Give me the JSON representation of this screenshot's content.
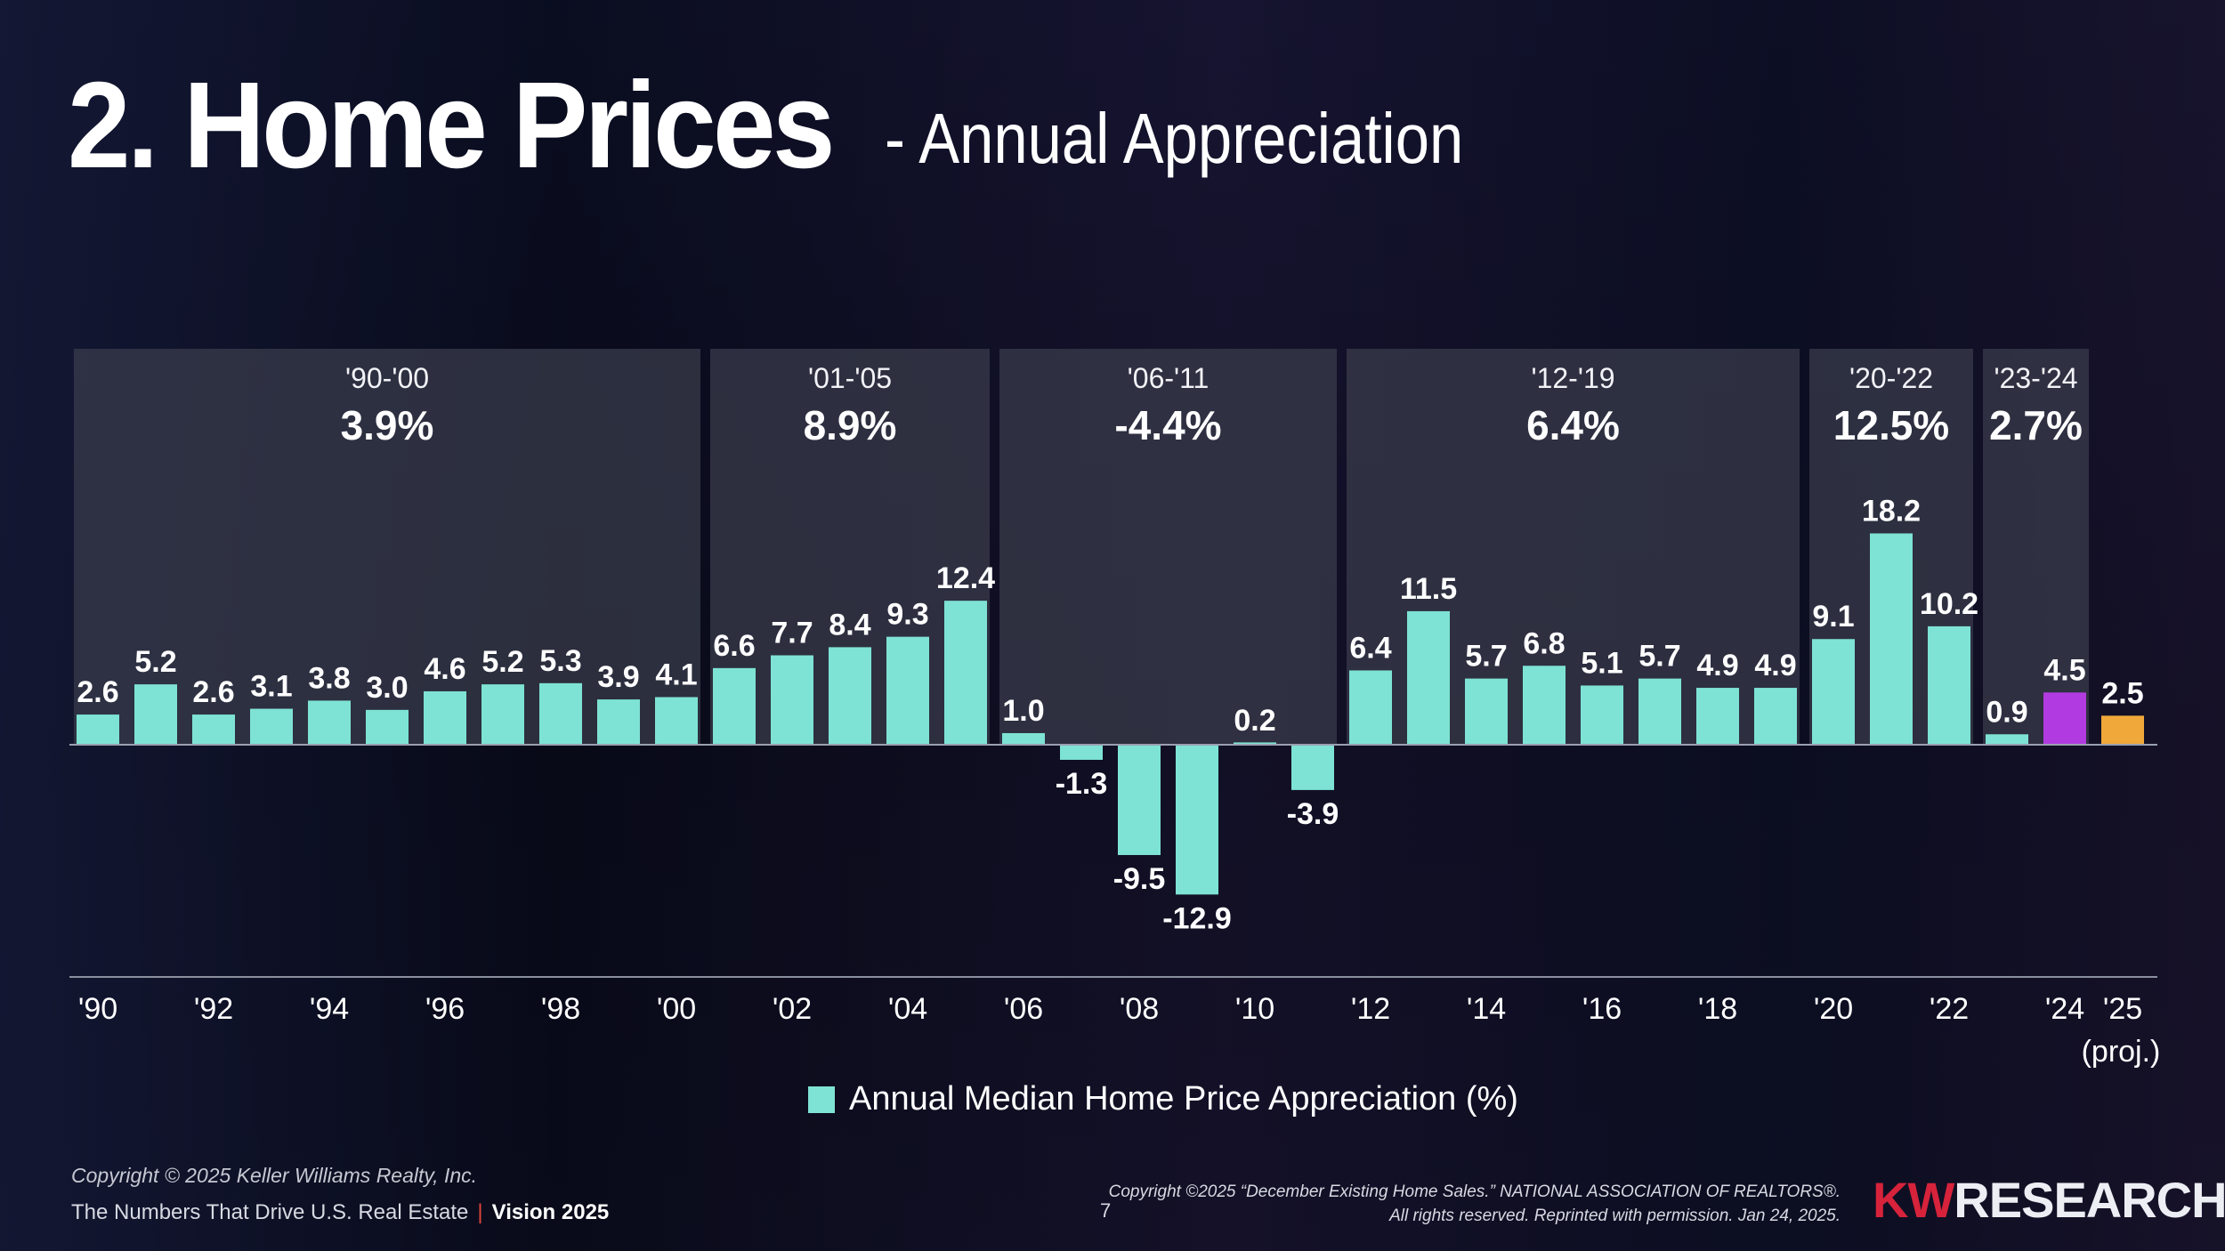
{
  "slide": {
    "title": "2. Home Prices",
    "subtitle": "- Annual Appreciation",
    "page_number": "7"
  },
  "footer": {
    "copyright": "Copyright © 2025 Keller Williams Realty, Inc.",
    "tagline": "The Numbers That Drive U.S. Real Estate",
    "separator": "|",
    "vision": "Vision 2025",
    "source_line1": "Copyright ©2025 “December Existing Home Sales.” NATIONAL ASSOCIATION OF REALTORS®.",
    "source_line2": "All rights reserved. Reprinted with permission. Jan 24, 2025.",
    "logo_kw": "KW",
    "logo_research": "RESEARCH"
  },
  "colors": {
    "bar": "#7ee3d4",
    "bar_2024": "#b13be0",
    "bar_2025": "#f0a83a",
    "period_box": "#3a3d4c"
  },
  "chart_data": {
    "type": "bar",
    "title": "Annual Median Home Price Appreciation (%)",
    "xlabel": "",
    "ylabel": "",
    "categories": [
      "'90",
      "'91",
      "'92",
      "'93",
      "'94",
      "'95",
      "'96",
      "'97",
      "'98",
      "'99",
      "'00",
      "'01",
      "'02",
      "'03",
      "'04",
      "'05",
      "'06",
      "'07",
      "'08",
      "'09",
      "'10",
      "'11",
      "'12",
      "'13",
      "'14",
      "'15",
      "'16",
      "'17",
      "'18",
      "'19",
      "'20",
      "'21",
      "'22",
      "'23",
      "'24",
      "'25"
    ],
    "values": [
      2.6,
      5.2,
      2.6,
      3.1,
      3.8,
      3.0,
      4.6,
      5.2,
      5.3,
      3.9,
      4.1,
      6.6,
      7.7,
      8.4,
      9.3,
      12.4,
      1.0,
      -1.3,
      -9.5,
      -12.9,
      0.2,
      -3.9,
      6.4,
      11.5,
      5.7,
      6.8,
      5.1,
      5.7,
      4.9,
      4.9,
      9.1,
      18.2,
      10.2,
      0.9,
      4.5,
      2.5
    ],
    "value_labels": [
      "2.6",
      "5.2",
      "2.6",
      "3.1",
      "3.8",
      "3.0",
      "4.6",
      "5.2",
      "5.3",
      "3.9",
      "4.1",
      "6.6",
      "7.7",
      "8.4",
      "9.3",
      "12.4",
      "1.0",
      "-1.3",
      "-9.5",
      "-12.9",
      "",
      "-3.9",
      "6.4",
      "11.5",
      "5.7",
      "6.8",
      "5.1",
      "5.7",
      "4.9",
      "4.9",
      "9.1",
      "18.2",
      "10.2",
      "0.9",
      "4.5",
      "2.5"
    ],
    "special_label_2010": "0.2",
    "x_tick_labels": [
      {
        "idx": 0,
        "label": "'90"
      },
      {
        "idx": 2,
        "label": "'92"
      },
      {
        "idx": 4,
        "label": "'94"
      },
      {
        "idx": 6,
        "label": "'96"
      },
      {
        "idx": 8,
        "label": "'98"
      },
      {
        "idx": 10,
        "label": "'00"
      },
      {
        "idx": 12,
        "label": "'02"
      },
      {
        "idx": 14,
        "label": "'04"
      },
      {
        "idx": 16,
        "label": "'06"
      },
      {
        "idx": 18,
        "label": "'08"
      },
      {
        "idx": 20,
        "label": "'10"
      },
      {
        "idx": 22,
        "label": "'12"
      },
      {
        "idx": 24,
        "label": "'14"
      },
      {
        "idx": 26,
        "label": "'16"
      },
      {
        "idx": 28,
        "label": "'18"
      },
      {
        "idx": 30,
        "label": "'20"
      },
      {
        "idx": 32,
        "label": "'22"
      },
      {
        "idx": 34,
        "label": "'24"
      },
      {
        "idx": 35,
        "label": "'25"
      }
    ],
    "proj_label": "(proj.)",
    "periods": [
      {
        "label": "'90-'00",
        "avg": "3.9%",
        "start": 0,
        "end": 10
      },
      {
        "label": "'01-'05",
        "avg": "8.9%",
        "start": 11,
        "end": 15
      },
      {
        "label": "'06-'11",
        "avg": "-4.4%",
        "start": 16,
        "end": 21
      },
      {
        "label": "'12-'19",
        "avg": "6.4%",
        "start": 22,
        "end": 29
      },
      {
        "label": "'20-'22",
        "avg": "12.5%",
        "start": 30,
        "end": 32
      },
      {
        "label": "'23-'24",
        "avg": "2.7%",
        "start": 33,
        "end": 34
      }
    ],
    "legend": "Annual Median Home Price Appreciation (%)",
    "grid": false
  }
}
